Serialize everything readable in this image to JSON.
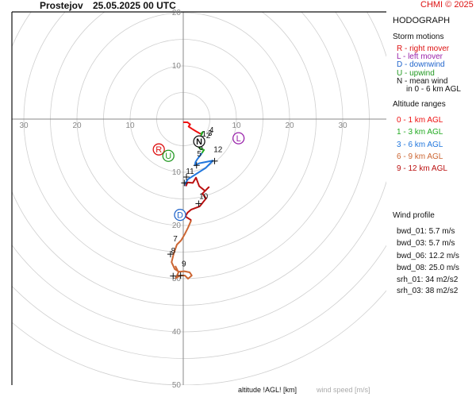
{
  "header": {
    "station": "Prostejov",
    "datetime": "25.05.2025 00 UTC",
    "credit": "CHMI © 2025"
  },
  "panel": {
    "title": "HODOGRAPH",
    "storm_motions_title": "Storm motions",
    "storm_motions": [
      {
        "text": "R - right mover",
        "color": "#dd1111"
      },
      {
        "text": "L - left mover",
        "color": "#9922aa"
      },
      {
        "text": "D - downwind",
        "color": "#2266cc"
      },
      {
        "text": "U - upwind",
        "color": "#229922"
      },
      {
        "text": "N - mean wind",
        "color": "#111111"
      },
      {
        "text": "in 0 - 6 km AGL",
        "color": "#111111"
      }
    ],
    "altitude_title": "Altitude ranges",
    "altitude_ranges": [
      {
        "text": "0 - 1 km AGL",
        "color": "#ee1111"
      },
      {
        "text": "1 - 3 km AGL",
        "color": "#22aa22"
      },
      {
        "text": "3 - 6 km AGL",
        "color": "#2277dd"
      },
      {
        "text": "6 - 9 km AGL",
        "color": "#cc6633"
      },
      {
        "text": "9 - 12 km AGL",
        "color": "#bb1111"
      }
    ],
    "wind_profile_title": "Wind profile",
    "wind_profile": [
      "bwd_01: 5.7 m/s",
      "bwd_03: 5.7 m/s",
      "bwd_06: 12.2 m/s",
      "bwd_08: 25.0 m/s"
    ],
    "helicity": [
      "srh_01: 34 m2/s2",
      "srh_03: 38 m2/s2"
    ]
  },
  "footer": {
    "altitude_label": "altitude !AGL! [km]",
    "speed_label": "wind speed [m/s]"
  },
  "chart_data": {
    "type": "line",
    "title": "HODOGRAPH",
    "xlabel": "",
    "ylabel": "",
    "xlim": [
      -32,
      39
    ],
    "ylim": [
      -50,
      20
    ],
    "rings_m_s": [
      5,
      10,
      15,
      20,
      25,
      30,
      35,
      40,
      45,
      50
    ],
    "x_ticks": [
      -30,
      -20,
      -10,
      10,
      20,
      30
    ],
    "y_ticks": [
      20,
      10,
      -10,
      -20,
      -30,
      -40,
      -50
    ],
    "x_tick_labels": [
      "30",
      "20",
      "10",
      "10",
      "20",
      "30"
    ],
    "y_tick_labels": [
      "20",
      "10",
      "10",
      "20",
      "30",
      "40",
      "50"
    ],
    "series": [
      {
        "name": "0 - 1 km AGL",
        "color": "#ee1111",
        "points": [
          [
            0,
            -0.6
          ],
          [
            0.8,
            -0.6
          ],
          [
            1.3,
            -1.0
          ],
          [
            1.0,
            -1.4
          ],
          [
            1.6,
            -1.8
          ],
          [
            2.4,
            -2.3
          ],
          [
            3.3,
            -2.8
          ]
        ]
      },
      {
        "name": "1 - 3 km AGL",
        "color": "#22aa22",
        "points": [
          [
            3.3,
            -2.8
          ],
          [
            3.7,
            -2.4
          ],
          [
            3.2,
            -3.4
          ],
          [
            2.6,
            -4.0
          ],
          [
            2.4,
            -4.6
          ],
          [
            3.0,
            -5.4
          ],
          [
            3.9,
            -5.8
          ],
          [
            3.5,
            -6.4
          ]
        ]
      },
      {
        "name": "3 - 6 km AGL",
        "color": "#2277dd",
        "points": [
          [
            3.5,
            -6.4
          ],
          [
            2.9,
            -7.2
          ],
          [
            2.6,
            -7.6
          ],
          [
            2.3,
            -8.1
          ],
          [
            2.2,
            -8.7
          ],
          [
            3.0,
            -8.3
          ],
          [
            5.6,
            -7.8
          ],
          [
            4.2,
            -9.2
          ],
          [
            2.6,
            -10.2
          ],
          [
            0.9,
            -11.3
          ],
          [
            0.4,
            -12.0
          ],
          [
            0.5,
            -12.6
          ]
        ]
      },
      {
        "name": "6 - 9 km AGL",
        "color": "#cc6633",
        "points": [
          [
            1.5,
            -19.0
          ],
          [
            0.9,
            -20.4
          ],
          [
            0.3,
            -21.6
          ],
          [
            -0.4,
            -22.8
          ],
          [
            -1.2,
            -23.6
          ],
          [
            -1.8,
            -25.3
          ],
          [
            -2.2,
            -26.9
          ],
          [
            -1.6,
            -28.2
          ],
          [
            -0.8,
            -28.7
          ],
          [
            0.2,
            -28.6
          ],
          [
            1.2,
            -28.8
          ],
          [
            1.6,
            -29.4
          ],
          [
            0.9,
            -30.0
          ],
          [
            0.3,
            -29.4
          ],
          [
            -0.6,
            -29.4
          ],
          [
            -1.4,
            -29.9
          ],
          [
            -0.9,
            -28.8
          ],
          [
            -1.5,
            -27.6
          ]
        ]
      },
      {
        "name": "9 - 12 km AGL",
        "color": "#bb1111",
        "points": [
          [
            0.5,
            -12.6
          ],
          [
            0.8,
            -11.9
          ],
          [
            1.8,
            -12.0
          ],
          [
            2.4,
            -11.0
          ],
          [
            3.0,
            -12.6
          ],
          [
            4.1,
            -13.5
          ],
          [
            4.8,
            -12.8
          ],
          [
            3.6,
            -14.0
          ],
          [
            4.3,
            -14.9
          ],
          [
            3.1,
            -16.4
          ],
          [
            1.5,
            -17.0
          ],
          [
            0.8,
            -17.6
          ],
          [
            0.4,
            -18.3
          ],
          [
            1.5,
            -19.0
          ]
        ]
      }
    ],
    "altitude_labels": [
      {
        "text": "1",
        "x": 3.5,
        "y": -3.3
      },
      {
        "text": "2",
        "x": 4.3,
        "y": -3.6
      },
      {
        "text": "3",
        "x": 4.6,
        "y": -3.1
      },
      {
        "text": "4",
        "x": 4.9,
        "y": -2.5
      },
      {
        "text": "5",
        "x": 2.6,
        "y": -7.0
      },
      {
        "text": "6",
        "x": 2.9,
        "y": -5.8
      },
      {
        "text": "7",
        "x": -1.9,
        "y": -23.0
      },
      {
        "text": "8",
        "x": -2.3,
        "y": -25.2
      },
      {
        "text": "9",
        "x": -0.3,
        "y": -27.7
      },
      {
        "text": "10",
        "x": 3.0,
        "y": -15.0
      },
      {
        "text": "11",
        "x": 0.5,
        "y": -10.3
      },
      {
        "text": "12",
        "x": 5.7,
        "y": -6.2
      }
    ],
    "crosses": [
      [
        2.9,
        -4.5
      ],
      [
        2.5,
        -8.7
      ],
      [
        5.9,
        -7.9
      ],
      [
        0.6,
        -10.9
      ],
      [
        0.2,
        -12.0
      ],
      [
        2.9,
        -15.9
      ],
      [
        -2.4,
        -25.4
      ],
      [
        -0.5,
        -29.4
      ],
      [
        -1.9,
        -29.5
      ]
    ],
    "storm_markers": [
      {
        "label": "N",
        "x": 3.0,
        "y": -4.2,
        "color": "#111111"
      },
      {
        "label": "L",
        "x": 10.4,
        "y": -3.6,
        "color": "#9922aa"
      },
      {
        "label": "R",
        "x": -4.6,
        "y": -5.7,
        "color": "#dd1111"
      },
      {
        "label": "U",
        "x": -2.8,
        "y": -6.9,
        "color": "#229922"
      },
      {
        "label": "D",
        "x": -0.6,
        "y": -18.0,
        "color": "#2266cc"
      }
    ]
  }
}
